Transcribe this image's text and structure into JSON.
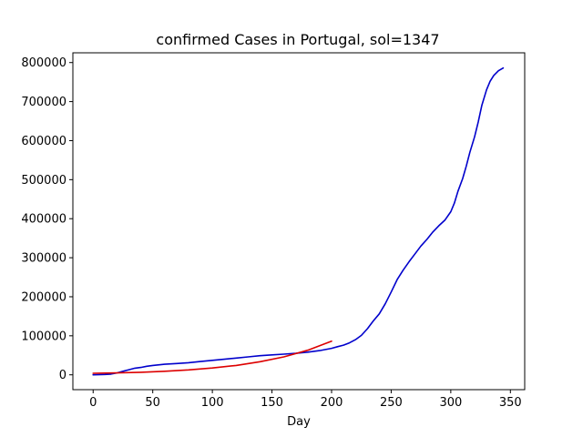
{
  "chart_data": {
    "type": "line",
    "title": "confirmed Cases in Portugal, sol=1347",
    "xlabel": "Day",
    "ylabel": "",
    "xlim": [
      -17,
      362
    ],
    "ylim": [
      -38000,
      825000
    ],
    "xticks": [
      0,
      50,
      100,
      150,
      200,
      250,
      300,
      350
    ],
    "yticks": [
      0,
      100000,
      200000,
      300000,
      400000,
      500000,
      600000,
      700000,
      800000
    ],
    "grid": false,
    "series": [
      {
        "color": "#0000cc",
        "x": [
          0,
          10,
          15,
          20,
          25,
          30,
          35,
          40,
          45,
          50,
          60,
          70,
          80,
          90,
          100,
          110,
          120,
          130,
          140,
          150,
          160,
          170,
          180,
          190,
          200,
          205,
          210,
          215,
          220,
          225,
          230,
          235,
          240,
          245,
          250,
          255,
          260,
          265,
          270,
          275,
          280,
          285,
          290,
          295,
          300,
          303,
          306,
          310,
          313,
          316,
          320,
          323,
          326,
          330,
          333,
          336,
          340,
          344
        ],
        "y": [
          0,
          1000,
          2000,
          5000,
          9000,
          13000,
          17000,
          19000,
          22000,
          24000,
          27000,
          29000,
          31000,
          34000,
          37000,
          40000,
          43000,
          46000,
          49000,
          51000,
          53000,
          55000,
          58000,
          62000,
          68000,
          72000,
          76000,
          82000,
          90000,
          101000,
          118000,
          138000,
          156000,
          182000,
          212000,
          244000,
          268000,
          290000,
          310000,
          330000,
          347000,
          366000,
          382000,
          396000,
          418000,
          440000,
          470000,
          503000,
          535000,
          570000,
          610000,
          648000,
          690000,
          730000,
          752000,
          767000,
          779000,
          786000
        ]
      },
      {
        "color": "#dd0000",
        "x": [
          0,
          20,
          40,
          60,
          80,
          100,
          120,
          140,
          160,
          180,
          200
        ],
        "y": [
          4000,
          5000,
          6500,
          9000,
          12500,
          17500,
          24000,
          33500,
          46000,
          63000,
          86000
        ]
      }
    ]
  }
}
